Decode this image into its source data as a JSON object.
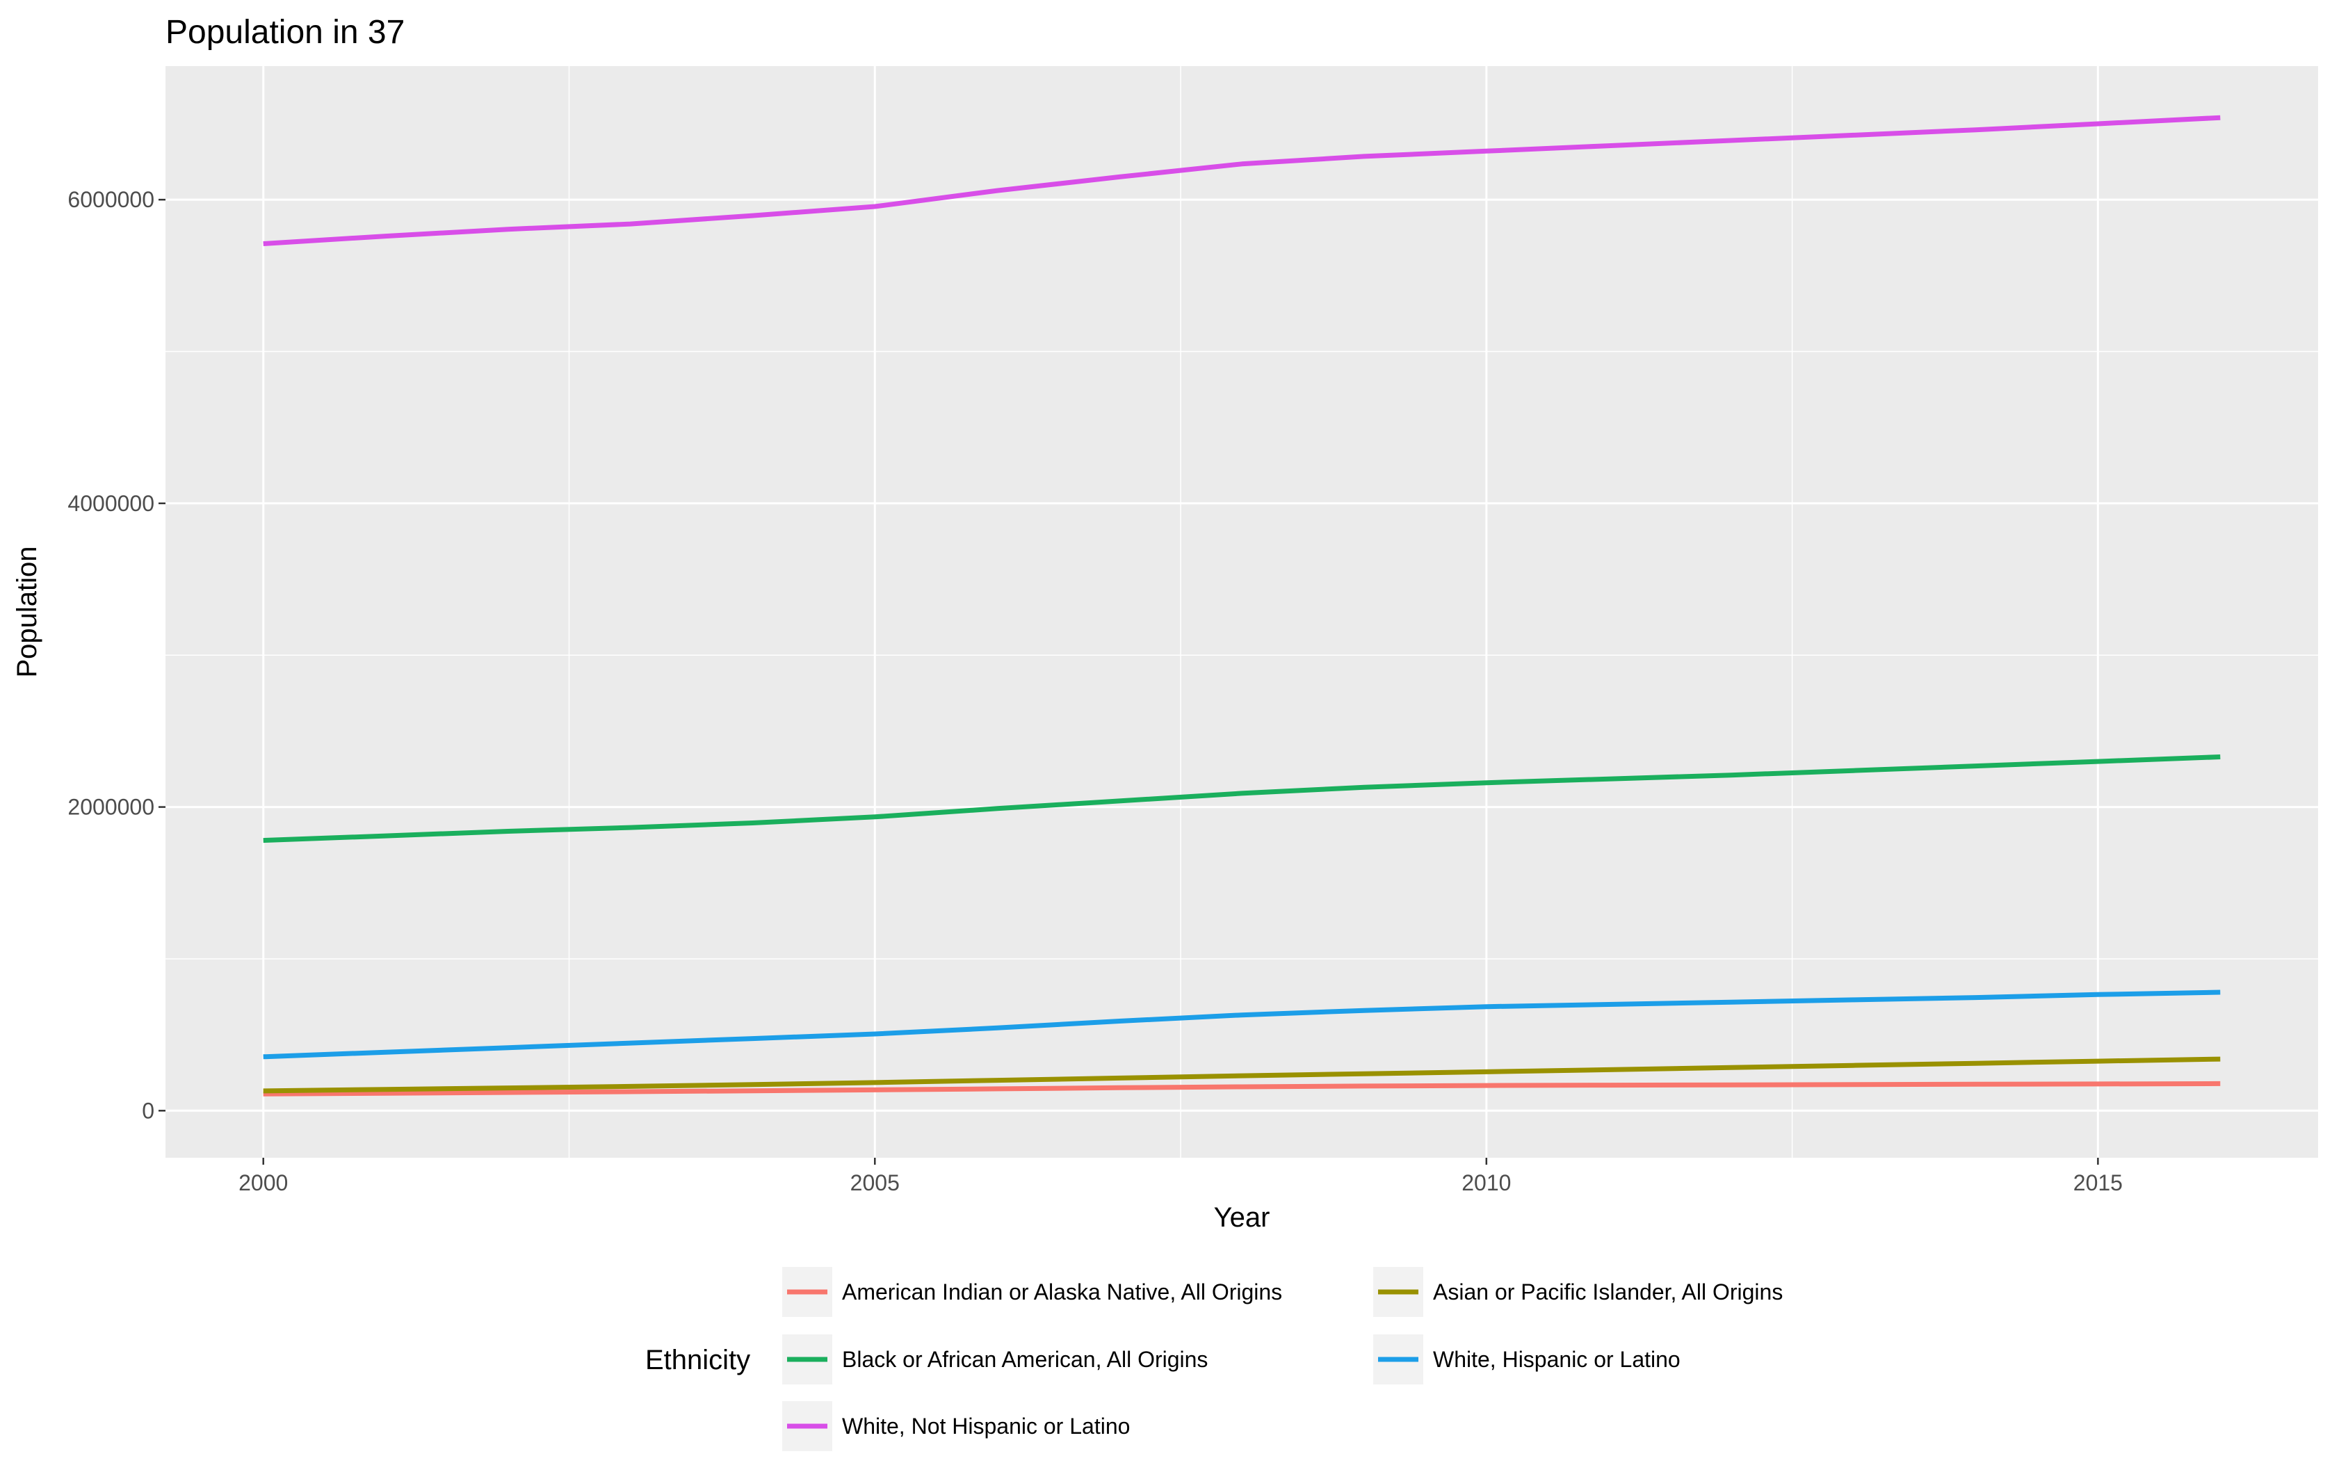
{
  "chart_data": {
    "type": "line",
    "title": "Population in 37",
    "xlabel": "Year",
    "ylabel": "Population",
    "xlim": [
      1999.2,
      2016.8
    ],
    "ylim": [
      -310000,
      6880000
    ],
    "x_ticks": [
      2000,
      2005,
      2010,
      2015
    ],
    "x_tick_labels": [
      "2000",
      "2005",
      "2010",
      "2015"
    ],
    "y_ticks": [
      0,
      2000000,
      4000000,
      6000000
    ],
    "y_tick_labels": [
      "0",
      "2000000",
      "4000000",
      "6000000"
    ],
    "grid": true,
    "legend_title": "Ethnicity",
    "legend_position": "bottom",
    "x": [
      2000,
      2001,
      2002,
      2003,
      2004,
      2005,
      2006,
      2007,
      2008,
      2009,
      2010,
      2011,
      2012,
      2013,
      2014,
      2015,
      2016
    ],
    "series": [
      {
        "name": "American Indian or Alaska Native, All Origins",
        "color": "#F8766D",
        "values": [
          110000,
          115000,
          120000,
          125000,
          131000,
          137000,
          144000,
          151000,
          157000,
          162000,
          166000,
          168000,
          170000,
          172000,
          174000,
          176000,
          178000
        ]
      },
      {
        "name": "Asian or Pacific Islander, All Origins",
        "color": "#999100",
        "values": [
          130000,
          140000,
          150000,
          160000,
          172000,
          185000,
          200000,
          215000,
          230000,
          243000,
          256000,
          270000,
          284000,
          298000,
          312000,
          326000,
          340000
        ]
      },
      {
        "name": "Black or African American, All Origins",
        "color": "#1AAF5D",
        "values": [
          1780000,
          1810000,
          1840000,
          1865000,
          1895000,
          1935000,
          1990000,
          2040000,
          2090000,
          2130000,
          2160000,
          2185000,
          2210000,
          2240000,
          2270000,
          2300000,
          2330000
        ]
      },
      {
        "name": "White, Hispanic or Latino",
        "color": "#1C9EE8",
        "values": [
          355000,
          385000,
          415000,
          445000,
          475000,
          505000,
          545000,
          590000,
          630000,
          660000,
          685000,
          700000,
          715000,
          730000,
          745000,
          765000,
          780000
        ]
      },
      {
        "name": "White, Not Hispanic or Latino",
        "color": "#D84EE8",
        "values": [
          5710000,
          5760000,
          5805000,
          5840000,
          5895000,
          5955000,
          6060000,
          6150000,
          6235000,
          6285000,
          6320000,
          6355000,
          6390000,
          6425000,
          6460000,
          6500000,
          6540000
        ]
      }
    ],
    "legend_order": [
      "American Indian or Alaska Native, All Origins",
      "Asian or Pacific Islander, All Origins",
      "Black or African American, All Origins",
      "White, Hispanic or Latino",
      "White, Not Hispanic or Latino"
    ]
  }
}
